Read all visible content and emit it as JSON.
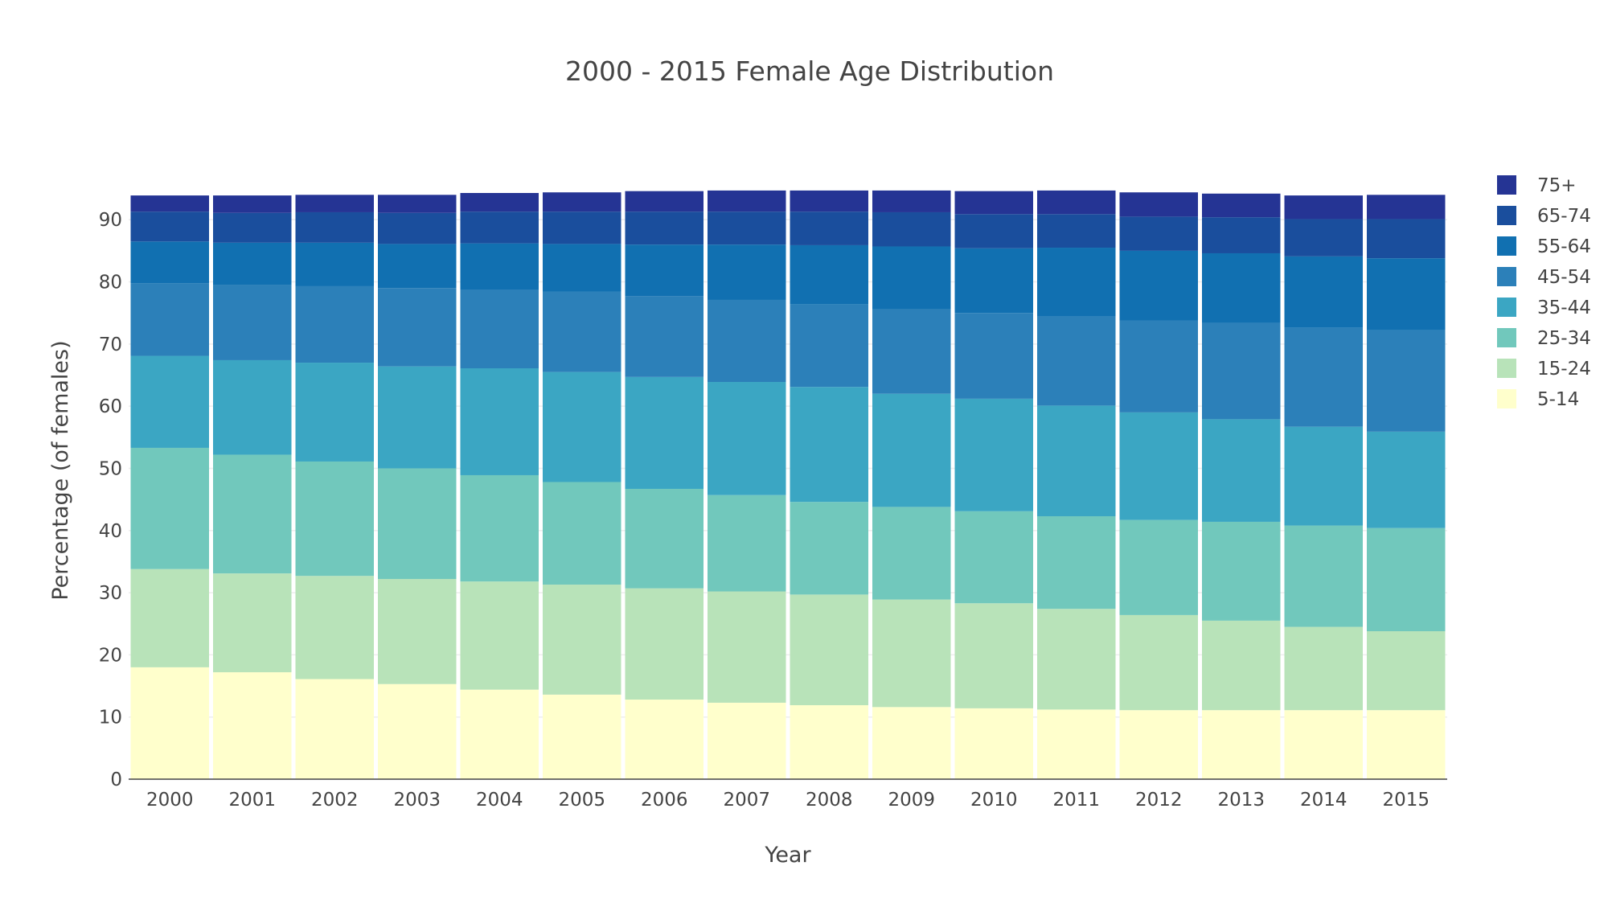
{
  "chart_data": {
    "type": "bar",
    "stacked": true,
    "title": "2000 - 2015 Female Age Distribution",
    "xlabel": "Year",
    "ylabel": "Percentage (of females)",
    "categories": [
      "2000",
      "2001",
      "2002",
      "2003",
      "2004",
      "2005",
      "2006",
      "2007",
      "2008",
      "2009",
      "2010",
      "2011",
      "2012",
      "2013",
      "2014",
      "2015"
    ],
    "ylim": [
      0,
      94.3
    ],
    "yticks": [
      0,
      10,
      20,
      30,
      40,
      50,
      60,
      70,
      80,
      90
    ],
    "grid": true,
    "legend_position": "right",
    "series": [
      {
        "name": "5-14",
        "color": "#ffffcc",
        "values": [
          18.0,
          17.2,
          16.1,
          15.3,
          14.4,
          13.6,
          12.8,
          12.3,
          11.9,
          11.6,
          11.4,
          11.2,
          11.1,
          11.1,
          11.1,
          11.1
        ]
      },
      {
        "name": "15-24",
        "color": "#b8e3b9",
        "values": [
          15.8,
          15.9,
          16.6,
          16.9,
          17.4,
          17.7,
          17.9,
          17.9,
          17.8,
          17.3,
          16.9,
          16.2,
          15.3,
          14.4,
          13.4,
          12.7
        ]
      },
      {
        "name": "25-34",
        "color": "#71c8bc",
        "values": [
          19.5,
          19.1,
          18.4,
          17.8,
          17.1,
          16.5,
          16.0,
          15.5,
          14.9,
          14.9,
          14.8,
          14.9,
          15.3,
          15.9,
          16.3,
          16.6
        ]
      },
      {
        "name": "35-44",
        "color": "#3ba6c3",
        "values": [
          14.8,
          15.2,
          15.9,
          16.4,
          17.2,
          17.7,
          18.0,
          18.2,
          18.5,
          18.2,
          18.1,
          17.8,
          17.3,
          16.5,
          15.9,
          15.5
        ]
      },
      {
        "name": "45-54",
        "color": "#2c80b9",
        "values": [
          11.7,
          12.1,
          12.3,
          12.6,
          12.6,
          12.9,
          13.0,
          13.2,
          13.3,
          13.6,
          13.8,
          14.3,
          14.8,
          15.5,
          15.9,
          16.3
        ]
      },
      {
        "name": "55-64",
        "color": "#1170b1",
        "values": [
          6.7,
          6.8,
          7.0,
          7.1,
          7.5,
          7.7,
          8.3,
          8.9,
          9.5,
          10.1,
          10.4,
          11.1,
          11.2,
          11.2,
          11.5,
          11.6
        ]
      },
      {
        "name": "65-74",
        "color": "#1a4e9d",
        "values": [
          4.8,
          4.8,
          4.9,
          5.0,
          5.1,
          5.2,
          5.3,
          5.3,
          5.4,
          5.5,
          5.5,
          5.4,
          5.5,
          5.8,
          6.0,
          6.3
        ]
      },
      {
        "name": "75+",
        "color": "#253494",
        "values": [
          2.6,
          2.8,
          2.8,
          2.9,
          3.0,
          3.1,
          3.3,
          3.4,
          3.4,
          3.5,
          3.7,
          3.8,
          3.9,
          3.8,
          3.8,
          3.9
        ]
      }
    ]
  }
}
